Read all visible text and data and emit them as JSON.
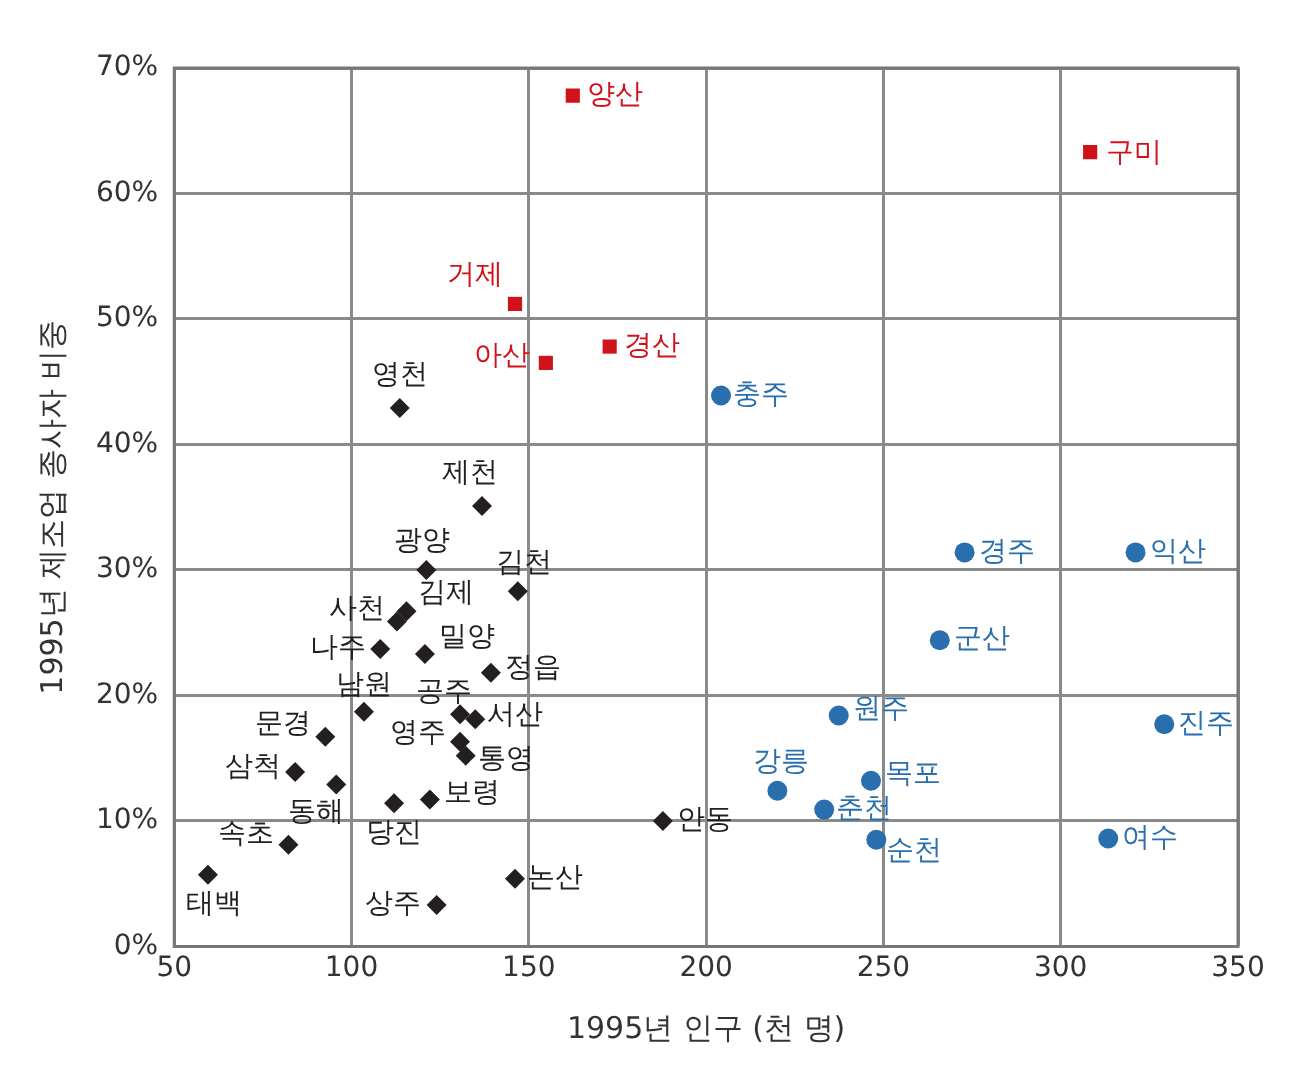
{
  "chart_data": {
    "type": "scatter",
    "xlabel": "1995년 인구 (천 명)",
    "ylabel": "1995년 제조업 종사자 비중",
    "xlim": [
      50,
      350
    ],
    "xticks": [
      50,
      100,
      150,
      200,
      250,
      300,
      350
    ],
    "ylim": [
      0,
      70
    ],
    "yticks": [
      {
        "value": 0,
        "label": "0%"
      },
      {
        "value": 10,
        "label": "10%"
      },
      {
        "value": 20,
        "label": "20%"
      },
      {
        "value": 30,
        "label": "30%"
      },
      {
        "value": 40,
        "label": "40%"
      },
      {
        "value": 50,
        "label": "50%"
      },
      {
        "value": 60,
        "label": "60%"
      },
      {
        "value": 70,
        "label": "70%"
      }
    ],
    "grid": true,
    "legend": false,
    "series": [
      {
        "color": "#231f20",
        "marker": "diamond",
        "x": [
          113.6,
          136.8,
          121.1,
          146.9,
          115.5,
          112.8,
          108.1,
          120.7,
          139.3,
          103.5,
          130.6,
          134.9,
          92.6,
          130.6,
          132.2,
          84.1,
          95.7,
          122.1,
          112.0,
          82.2,
          59.5,
          146.1,
          124.0,
          187.8
        ],
        "values": [
          42.9,
          35.1,
          30.0,
          28.3,
          26.7,
          25.9,
          23.7,
          23.3,
          21.8,
          18.7,
          18.5,
          18.1,
          16.7,
          16.3,
          15.2,
          13.9,
          12.9,
          11.7,
          11.4,
          8.1,
          5.7,
          5.4,
          3.3,
          10.0
        ]
      },
      {
        "color": "#d0121b",
        "marker": "square",
        "x": [
          162.4,
          308.3,
          146.1,
          154.8,
          172.8
        ],
        "values": [
          67.8,
          63.3,
          51.2,
          46.5,
          47.8
        ]
      },
      {
        "color": "#2a6fad",
        "marker": "circle",
        "x": [
          204.2,
          272.9,
          321.1,
          265.9,
          237.4,
          329.2,
          220.1,
          246.5,
          233.3,
          248.0,
          313.4
        ],
        "values": [
          43.9,
          31.4,
          31.4,
          24.4,
          18.4,
          17.7,
          12.4,
          13.2,
          10.9,
          8.5,
          8.6
        ]
      }
    ],
    "annotations": [
      {
        "text": "영천",
        "x": 113.6,
        "y": 42.9
      },
      {
        "text": "제천",
        "x": 136.8,
        "y": 35.1
      },
      {
        "text": "광양",
        "x": 121.1,
        "y": 30.0
      },
      {
        "text": "김천",
        "x": 146.9,
        "y": 28.3
      },
      {
        "text": "김제",
        "x": 115.5,
        "y": 26.7
      },
      {
        "text": "사천",
        "x": 112.8,
        "y": 25.9
      },
      {
        "text": "나주",
        "x": 108.1,
        "y": 23.7
      },
      {
        "text": "밀양",
        "x": 120.7,
        "y": 23.3
      },
      {
        "text": "정읍",
        "x": 139.3,
        "y": 21.8
      },
      {
        "text": "남원",
        "x": 103.5,
        "y": 18.7
      },
      {
        "text": "공주",
        "x": 130.6,
        "y": 18.5
      },
      {
        "text": "서산",
        "x": 134.9,
        "y": 18.1
      },
      {
        "text": "문경",
        "x": 92.6,
        "y": 16.7
      },
      {
        "text": "영주",
        "x": 130.6,
        "y": 16.3
      },
      {
        "text": "통영",
        "x": 132.2,
        "y": 15.2
      },
      {
        "text": "삼척",
        "x": 84.1,
        "y": 13.9
      },
      {
        "text": "동해",
        "x": 95.7,
        "y": 12.9
      },
      {
        "text": "보령",
        "x": 122.1,
        "y": 11.7
      },
      {
        "text": "당진",
        "x": 112.0,
        "y": 11.4
      },
      {
        "text": "속초",
        "x": 82.2,
        "y": 8.1
      },
      {
        "text": "태백",
        "x": 59.5,
        "y": 5.7
      },
      {
        "text": "논산",
        "x": 146.1,
        "y": 5.4
      },
      {
        "text": "상주",
        "x": 124.0,
        "y": 3.3
      },
      {
        "text": "안동",
        "x": 187.8,
        "y": 10.0
      },
      {
        "text": "양산",
        "x": 162.4,
        "y": 67.8
      },
      {
        "text": "구미",
        "x": 308.3,
        "y": 63.3
      },
      {
        "text": "거제",
        "x": 146.1,
        "y": 51.2
      },
      {
        "text": "아산",
        "x": 154.8,
        "y": 46.5
      },
      {
        "text": "경산",
        "x": 172.8,
        "y": 47.8
      },
      {
        "text": "충주",
        "x": 204.2,
        "y": 43.9
      },
      {
        "text": "경주",
        "x": 272.9,
        "y": 31.4
      },
      {
        "text": "익산",
        "x": 321.1,
        "y": 31.4
      },
      {
        "text": "군산",
        "x": 265.9,
        "y": 24.4
      },
      {
        "text": "원주",
        "x": 237.4,
        "y": 18.4
      },
      {
        "text": "진주",
        "x": 329.2,
        "y": 17.7
      },
      {
        "text": "강릉",
        "x": 220.1,
        "y": 12.4
      },
      {
        "text": "목포",
        "x": 246.5,
        "y": 13.2
      },
      {
        "text": "춘천",
        "x": 233.3,
        "y": 10.9
      },
      {
        "text": "순천",
        "x": 248.0,
        "y": 8.5
      },
      {
        "text": "여수",
        "x": 313.4,
        "y": 8.6
      }
    ]
  }
}
